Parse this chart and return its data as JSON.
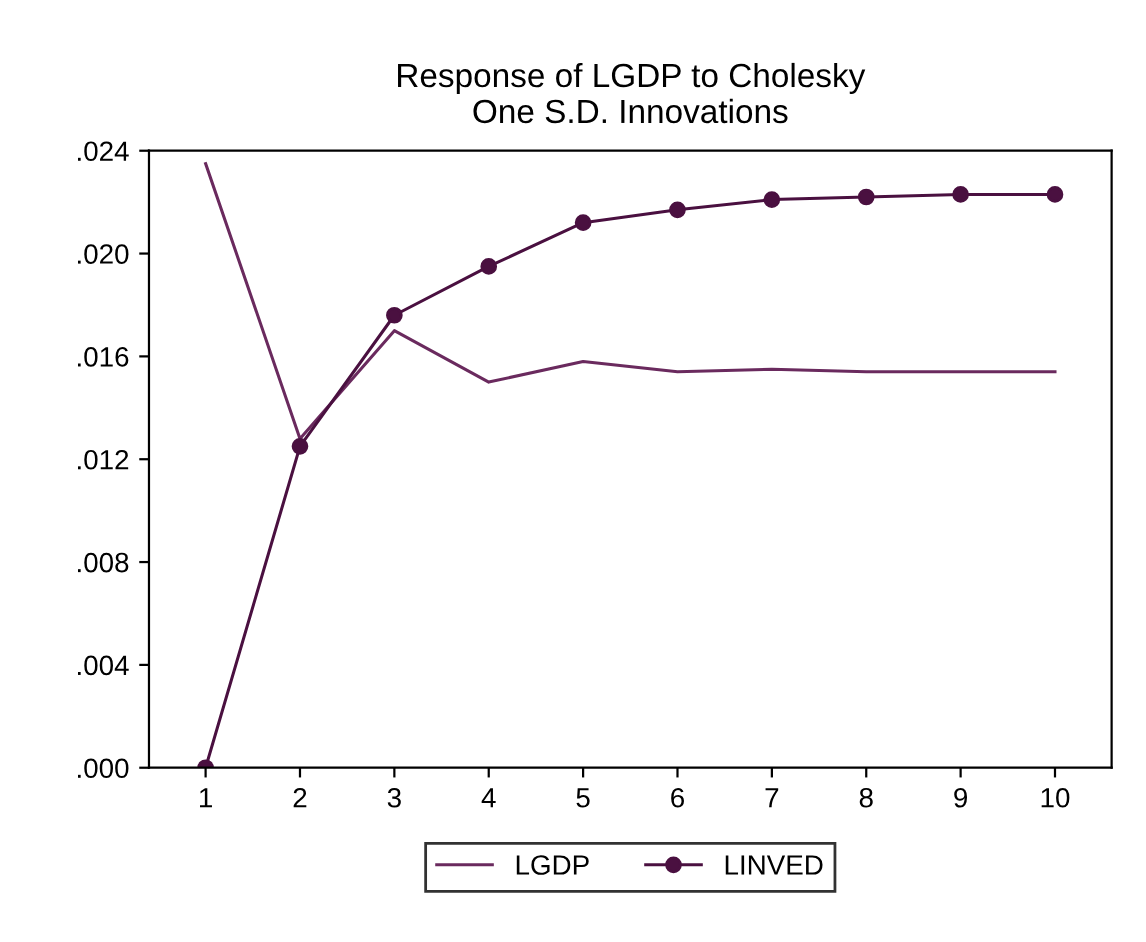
{
  "chart_data": {
    "type": "line",
    "title": "Response of LGDP to Cholesky\nOne S.D. Innovations",
    "categories": [
      "1",
      "2",
      "3",
      "4",
      "5",
      "6",
      "7",
      "8",
      "9",
      "10"
    ],
    "series": [
      {
        "name": "LGDP",
        "color": "#6a2a5e",
        "values": [
          0.0235,
          0.0128,
          0.017,
          0.015,
          0.0158,
          0.0154,
          0.0155,
          0.0154,
          0.0154,
          0.0154
        ],
        "marker": "none"
      },
      {
        "name": "LINVED",
        "color": "#4a1040",
        "values": [
          0.0,
          0.0125,
          0.0176,
          0.0195,
          0.0212,
          0.0217,
          0.0221,
          0.0222,
          0.0223,
          0.0223
        ],
        "marker": "circle"
      }
    ],
    "ylim": [
      0,
      0.024
    ],
    "yticks": [
      {
        "value": 0,
        "label": ".000"
      },
      {
        "value": 0.004,
        "label": ".004"
      },
      {
        "value": 0.008,
        "label": ".008"
      },
      {
        "value": 0.012,
        "label": ".012"
      },
      {
        "value": 0.016,
        "label": ".016"
      },
      {
        "value": 0.02,
        "label": ".020"
      },
      {
        "value": 0.024,
        "label": ".024"
      }
    ],
    "grid": false,
    "legend": "bottom",
    "line_style": "solid"
  }
}
